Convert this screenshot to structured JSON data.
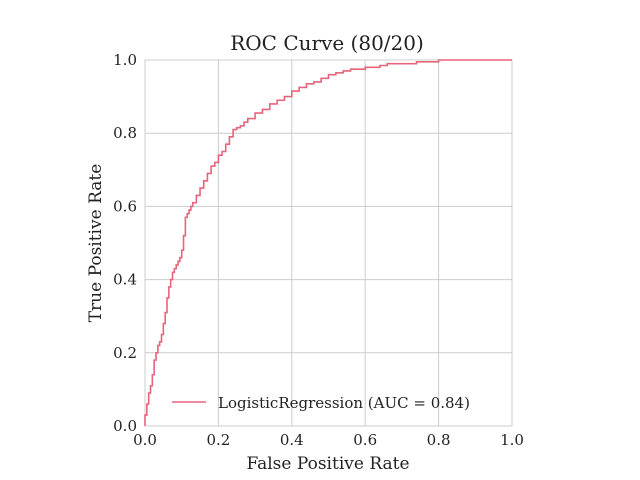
{
  "chart_data": {
    "type": "line",
    "title": "ROC Curve (80/20)",
    "xlabel": "False Positive Rate",
    "ylabel": "True Positive Rate",
    "xlim": [
      0.0,
      1.0
    ],
    "ylim": [
      0.0,
      1.0
    ],
    "x_ticks": [
      "0.0",
      "0.2",
      "0.4",
      "0.6",
      "0.8",
      "1.0"
    ],
    "y_ticks": [
      "0.0",
      "0.2",
      "0.4",
      "0.6",
      "0.8",
      "1.0"
    ],
    "grid": true,
    "legend_position": "lower-right",
    "line_color": "#e8647a",
    "series": [
      {
        "name": "LogisticRegression (AUC = 0.84)",
        "x": [
          0.0,
          0.0,
          0.005,
          0.01,
          0.015,
          0.02,
          0.025,
          0.03,
          0.035,
          0.04,
          0.045,
          0.05,
          0.055,
          0.06,
          0.065,
          0.07,
          0.075,
          0.08,
          0.085,
          0.09,
          0.095,
          0.1,
          0.105,
          0.11,
          0.115,
          0.12,
          0.125,
          0.13,
          0.14,
          0.15,
          0.16,
          0.17,
          0.18,
          0.19,
          0.2,
          0.21,
          0.22,
          0.23,
          0.24,
          0.25,
          0.26,
          0.27,
          0.28,
          0.3,
          0.32,
          0.34,
          0.36,
          0.38,
          0.4,
          0.42,
          0.44,
          0.46,
          0.48,
          0.5,
          0.52,
          0.54,
          0.56,
          0.58,
          0.6,
          0.62,
          0.64,
          0.66,
          0.68,
          0.7,
          0.72,
          0.74,
          0.76,
          0.78,
          0.8,
          0.85,
          0.9,
          0.95,
          0.98,
          1.0
        ],
        "y": [
          0.0,
          0.03,
          0.06,
          0.09,
          0.11,
          0.14,
          0.18,
          0.2,
          0.22,
          0.23,
          0.25,
          0.28,
          0.31,
          0.35,
          0.38,
          0.4,
          0.42,
          0.43,
          0.44,
          0.45,
          0.46,
          0.48,
          0.52,
          0.57,
          0.58,
          0.59,
          0.6,
          0.61,
          0.63,
          0.65,
          0.67,
          0.69,
          0.71,
          0.72,
          0.74,
          0.75,
          0.77,
          0.79,
          0.81,
          0.815,
          0.82,
          0.83,
          0.84,
          0.855,
          0.865,
          0.88,
          0.89,
          0.9,
          0.915,
          0.925,
          0.935,
          0.94,
          0.95,
          0.96,
          0.965,
          0.97,
          0.975,
          0.975,
          0.98,
          0.98,
          0.985,
          0.99,
          0.99,
          0.99,
          0.99,
          0.995,
          0.995,
          0.995,
          1.0,
          1.0,
          1.0,
          1.0,
          1.0,
          1.0
        ]
      }
    ]
  }
}
